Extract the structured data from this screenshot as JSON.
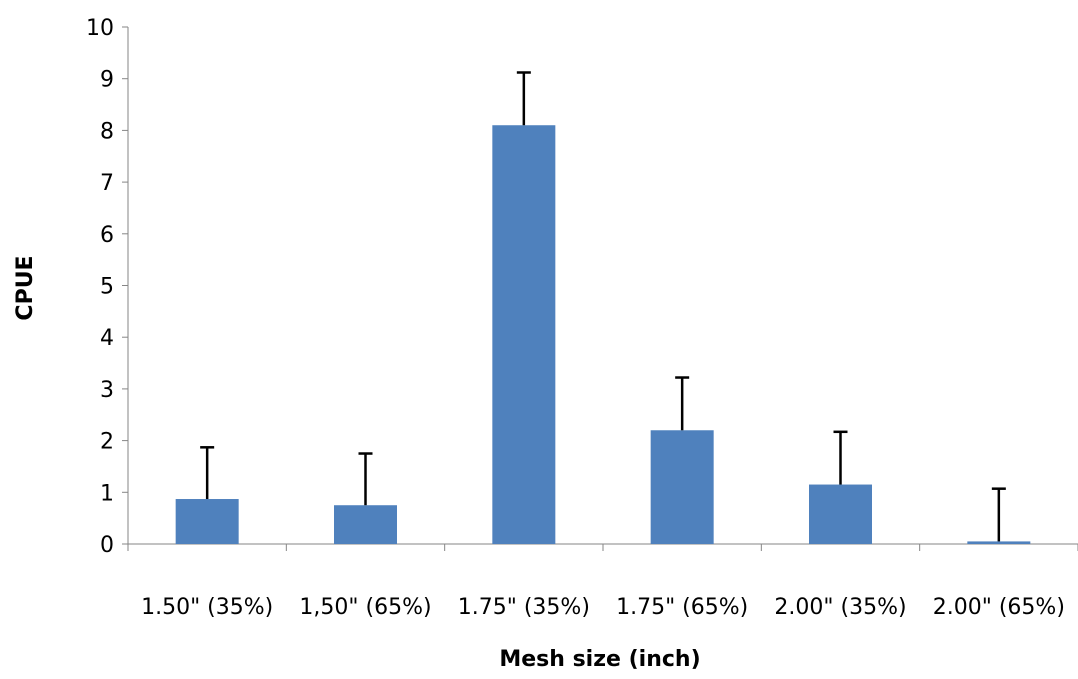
{
  "chart_data": {
    "type": "bar",
    "title": "",
    "xlabel": "Mesh size (inch)",
    "ylabel": "CPUE",
    "categories": [
      "1.50\" (35%)",
      "1,50\" (65%)",
      "1.75\" (35%)",
      "1.75\" (65%)",
      "2.00\" (35%)",
      "2.00\" (65%)"
    ],
    "series": [
      {
        "values": [
          0.87,
          0.75,
          8.1,
          2.2,
          1.15,
          0.05
        ],
        "error_plus": [
          1.0,
          1.0,
          1.02,
          1.02,
          1.02,
          1.02
        ],
        "color": "#4f81bd"
      }
    ],
    "ylim": [
      0,
      10
    ],
    "yticks": [
      0,
      1,
      2,
      3,
      4,
      5,
      6,
      7,
      8,
      9,
      10
    ],
    "grid": false,
    "legend": "none"
  }
}
